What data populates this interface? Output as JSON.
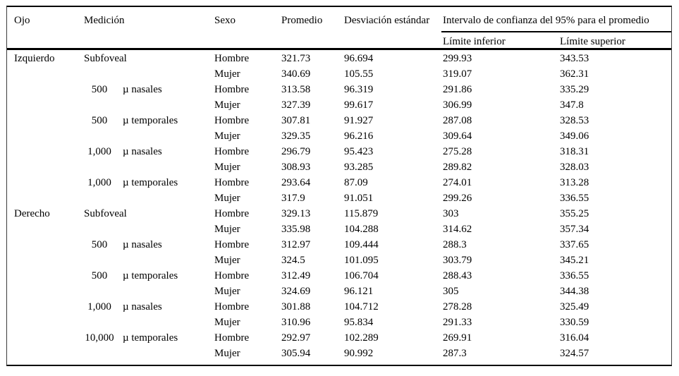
{
  "table": {
    "headers": {
      "ojo": "Ojo",
      "medicion": "Medición",
      "sexo": "Sexo",
      "promedio": "Promedio",
      "desviacion": "Desviación estándar",
      "intervalo_group": "Intervalo de confianza del 95% para el promedio",
      "limite_inferior": "Límite inferior",
      "limite_superior": "Límite superior"
    },
    "rows": [
      {
        "ojo": "Izquierdo",
        "med_num": "",
        "med_label": "Subfoveal",
        "sexo": "Hombre",
        "promedio": "321.73",
        "desviacion": "96.694",
        "lim_inf": "299.93",
        "lim_sup": "343.53"
      },
      {
        "ojo": "",
        "med_num": "",
        "med_label": "",
        "sexo": "Mujer",
        "promedio": "340.69",
        "desviacion": "105.55",
        "lim_inf": "319.07",
        "lim_sup": "362.31"
      },
      {
        "ojo": "",
        "med_num": "500",
        "med_label": "µ nasales",
        "sexo": "Hombre",
        "promedio": "313.58",
        "desviacion": "96.319",
        "lim_inf": "291.86",
        "lim_sup": "335.29"
      },
      {
        "ojo": "",
        "med_num": "",
        "med_label": "",
        "sexo": "Mujer",
        "promedio": "327.39",
        "desviacion": "99.617",
        "lim_inf": "306.99",
        "lim_sup": "347.8"
      },
      {
        "ojo": "",
        "med_num": "500",
        "med_label": "µ temporales",
        "sexo": "Hombre",
        "promedio": "307.81",
        "desviacion": "91.927",
        "lim_inf": "287.08",
        "lim_sup": "328.53"
      },
      {
        "ojo": "",
        "med_num": "",
        "med_label": "",
        "sexo": "Mujer",
        "promedio": "329.35",
        "desviacion": "96.216",
        "lim_inf": "309.64",
        "lim_sup": "349.06"
      },
      {
        "ojo": "",
        "med_num": "1,000",
        "med_label": "µ nasales",
        "sexo": "Hombre",
        "promedio": "296.79",
        "desviacion": "95.423",
        "lim_inf": "275.28",
        "lim_sup": "318.31"
      },
      {
        "ojo": "",
        "med_num": "",
        "med_label": "",
        "sexo": "Mujer",
        "promedio": "308.93",
        "desviacion": "93.285",
        "lim_inf": "289.82",
        "lim_sup": "328.03"
      },
      {
        "ojo": "",
        "med_num": "1,000",
        "med_label": "µ temporales",
        "sexo": "Hombre",
        "promedio": "293.64",
        "desviacion": "87.09",
        "lim_inf": "274.01",
        "lim_sup": "313.28"
      },
      {
        "ojo": "",
        "med_num": "",
        "med_label": "",
        "sexo": "Mujer",
        "promedio": "317.9",
        "desviacion": "91.051",
        "lim_inf": "299.26",
        "lim_sup": "336.55"
      },
      {
        "ojo": "Derecho",
        "med_num": "",
        "med_label": "Subfoveal",
        "sexo": "Hombre",
        "promedio": "329.13",
        "desviacion": "115.879",
        "lim_inf": "303",
        "lim_sup": "355.25"
      },
      {
        "ojo": "",
        "med_num": "",
        "med_label": "",
        "sexo": "Mujer",
        "promedio": "335.98",
        "desviacion": "104.288",
        "lim_inf": "314.62",
        "lim_sup": "357.34"
      },
      {
        "ojo": "",
        "med_num": "500",
        "med_label": "µ nasales",
        "sexo": "Hombre",
        "promedio": "312.97",
        "desviacion": "109.444",
        "lim_inf": "288.3",
        "lim_sup": "337.65"
      },
      {
        "ojo": "",
        "med_num": "",
        "med_label": "",
        "sexo": "Mujer",
        "promedio": "324.5",
        "desviacion": "101.095",
        "lim_inf": "303.79",
        "lim_sup": "345.21"
      },
      {
        "ojo": "",
        "med_num": "500",
        "med_label": "µ temporales",
        "sexo": "Hombre",
        "promedio": "312.49",
        "desviacion": "106.704",
        "lim_inf": "288.43",
        "lim_sup": "336.55"
      },
      {
        "ojo": "",
        "med_num": "",
        "med_label": "",
        "sexo": "Mujer",
        "promedio": "324.69",
        "desviacion": "96.121",
        "lim_inf": "305",
        "lim_sup": "344.38"
      },
      {
        "ojo": "",
        "med_num": "1,000",
        "med_label": "µ nasales",
        "sexo": "Hombre",
        "promedio": "301.88",
        "desviacion": "104.712",
        "lim_inf": "278.28",
        "lim_sup": "325.49"
      },
      {
        "ojo": "",
        "med_num": "",
        "med_label": "",
        "sexo": "Mujer",
        "promedio": "310.96",
        "desviacion": "95.834",
        "lim_inf": "291.33",
        "lim_sup": "330.59"
      },
      {
        "ojo": "",
        "med_num": "10,000",
        "med_label": "µ temporales",
        "sexo": "Hombre",
        "promedio": "292.97",
        "desviacion": "102.289",
        "lim_inf": "269.91",
        "lim_sup": "316.04"
      },
      {
        "ojo": "",
        "med_num": "",
        "med_label": "",
        "sexo": "Mujer",
        "promedio": "305.94",
        "desviacion": "90.992",
        "lim_inf": "287.3",
        "lim_sup": "324.57"
      }
    ]
  },
  "colors": {
    "text": "#000000",
    "rule": "#000000",
    "background": "#ffffff"
  }
}
